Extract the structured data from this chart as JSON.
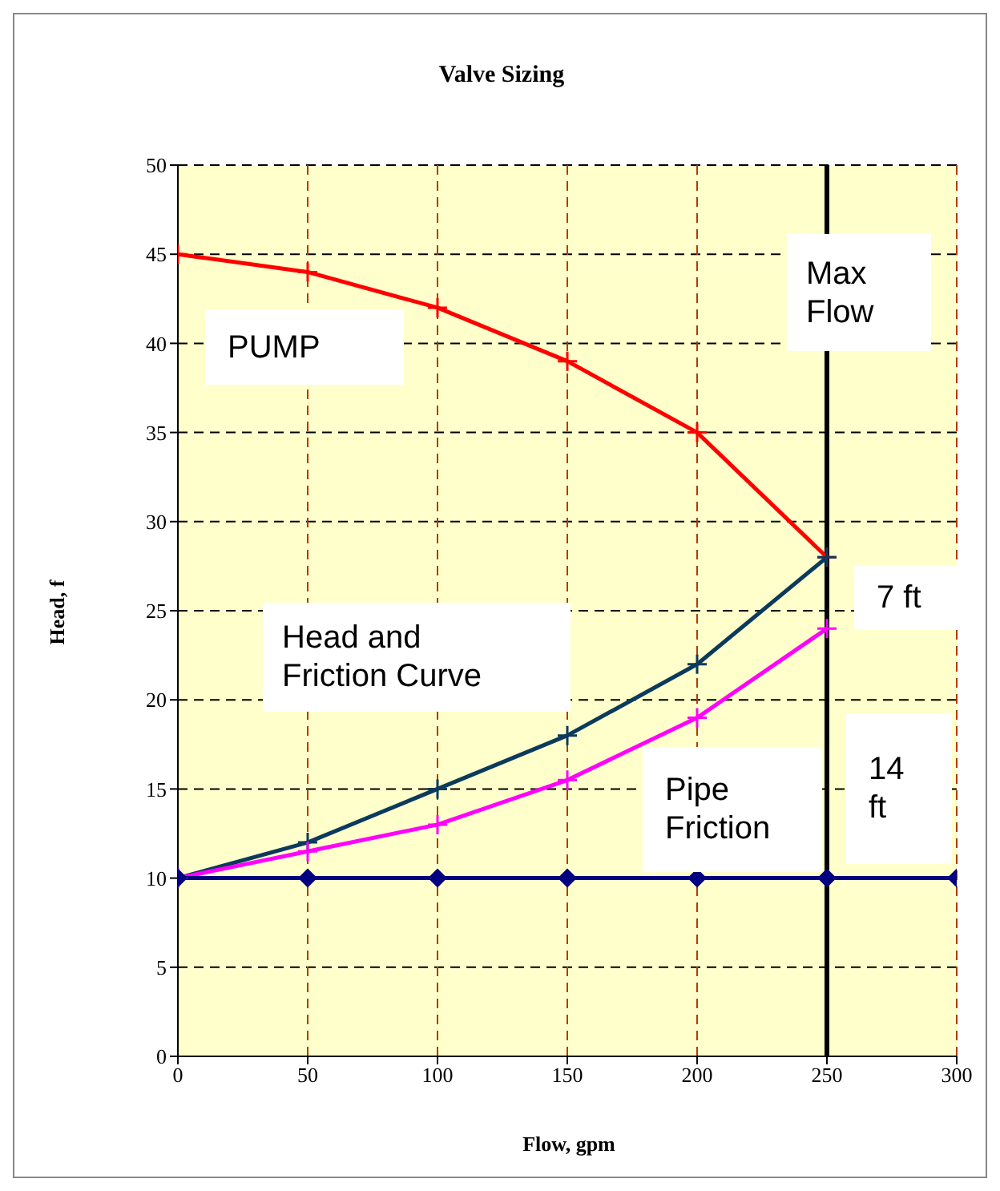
{
  "chart_data": {
    "type": "line",
    "title": "Valve Sizing",
    "xlabel": "Flow, gpm",
    "ylabel": "Head, f",
    "x": [
      0,
      50,
      100,
      150,
      200,
      250,
      300
    ],
    "series": [
      {
        "name": "PUMP",
        "color": "#ff0000",
        "marker": "cross",
        "values": [
          45,
          44,
          42,
          39,
          35,
          28,
          null
        ]
      },
      {
        "name": "Head and Friction Curve",
        "color": "#0b3a5c",
        "marker": "cross",
        "values": [
          10,
          12,
          15,
          18,
          22,
          28,
          null
        ]
      },
      {
        "name": "Pipe Friction",
        "color": "#ff00ff",
        "marker": "cross",
        "values": [
          10,
          11.5,
          13,
          15.5,
          19,
          24,
          null
        ]
      },
      {
        "color": "#000080",
        "marker": "diamond",
        "values": [
          10,
          10,
          10,
          10,
          10,
          10,
          10
        ]
      }
    ],
    "xlim": [
      0,
      300
    ],
    "xticks": [
      0,
      50,
      100,
      150,
      200,
      250,
      300
    ],
    "ylim": [
      0,
      50
    ],
    "yticks": [
      0,
      5,
      10,
      15,
      20,
      25,
      30,
      35,
      40,
      45,
      50
    ],
    "grid": true,
    "ref_lines": [
      {
        "axis": "x",
        "value": 250,
        "label": "Max Flow",
        "color": "#000000"
      }
    ],
    "annotations": [
      "7 ft",
      "14 ft"
    ]
  }
}
